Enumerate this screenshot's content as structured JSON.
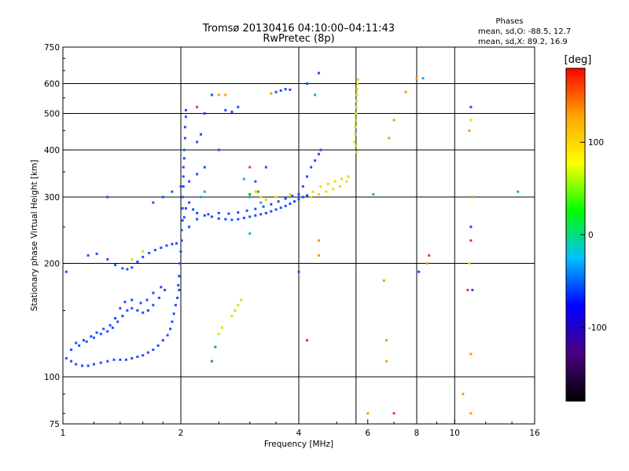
{
  "chart_data": {
    "type": "scatter",
    "title_line1": "Tromsø 20130416 04:10:00–04:11:43",
    "title_line2": "RwPretec (8p)",
    "info": {
      "header": "Phases",
      "line1": "mean, sd,O: -88.5, 12.7",
      "line2": "mean, sd,X:  89.2, 16.9"
    },
    "xlabel": "Frequency [MHz]",
    "ylabel": "Stationary phase Virtual Height [km]",
    "x_scale": "log",
    "y_scale": "log",
    "xlim": [
      1,
      16
    ],
    "ylim": [
      75,
      750
    ],
    "x_ticks": [
      {
        "value": 1,
        "label": "1"
      },
      {
        "value": 2,
        "label": "2"
      },
      {
        "value": 4,
        "label": "4"
      },
      {
        "value": 6,
        "label": "6"
      },
      {
        "value": 8,
        "label": "8"
      },
      {
        "value": 10,
        "label": "10"
      },
      {
        "value": 16,
        "label": "16"
      }
    ],
    "x_gridlines": [
      2,
      4,
      5.6,
      8,
      10
    ],
    "y_ticks": [
      {
        "value": 75,
        "label": "75"
      },
      {
        "value": 100,
        "label": "100"
      },
      {
        "value": 200,
        "label": "200"
      },
      {
        "value": 300,
        "label": "300"
      },
      {
        "value": 400,
        "label": "400"
      },
      {
        "value": 500,
        "label": "500"
      },
      {
        "value": 600,
        "label": "600"
      },
      {
        "value": 750,
        "label": "750"
      }
    ],
    "y_gridlines": [
      100,
      200,
      300,
      400,
      500,
      600
    ],
    "colorbar": {
      "label": "[deg]",
      "range": [
        -180,
        180
      ],
      "ticks": [
        {
          "value": 100,
          "label": "100"
        },
        {
          "value": 0,
          "label": "0"
        },
        {
          "value": -100,
          "label": "-100"
        }
      ],
      "stops": [
        "#000000",
        "#4b0082",
        "#0000ff",
        "#00bfff",
        "#00ff00",
        "#ffff00",
        "#ffa500",
        "#ff0000"
      ]
    },
    "grid": true,
    "series": [
      {
        "color": "#1a4fff",
        "points": [
          [
            1.02,
            112
          ],
          [
            1.05,
            110
          ],
          [
            1.08,
            108
          ],
          [
            1.12,
            107
          ],
          [
            1.16,
            107
          ],
          [
            1.2,
            108
          ],
          [
            1.25,
            109
          ],
          [
            1.3,
            110
          ],
          [
            1.35,
            111
          ],
          [
            1.4,
            111
          ],
          [
            1.45,
            111
          ],
          [
            1.5,
            112
          ],
          [
            1.55,
            113
          ],
          [
            1.6,
            114
          ],
          [
            1.65,
            116
          ],
          [
            1.7,
            118
          ],
          [
            1.75,
            121
          ],
          [
            1.8,
            125
          ],
          [
            1.85,
            129
          ],
          [
            1.88,
            134
          ],
          [
            1.9,
            140
          ],
          [
            1.92,
            147
          ],
          [
            1.94,
            155
          ],
          [
            1.96,
            162
          ],
          [
            1.98,
            170
          ],
          [
            1.05,
            118
          ],
          [
            1.1,
            121
          ],
          [
            1.15,
            124
          ],
          [
            1.2,
            127
          ],
          [
            1.25,
            130
          ],
          [
            1.3,
            132
          ],
          [
            1.34,
            135
          ],
          [
            1.38,
            140
          ],
          [
            1.42,
            145
          ],
          [
            1.46,
            150
          ],
          [
            1.5,
            152
          ],
          [
            1.55,
            150
          ],
          [
            1.6,
            148
          ],
          [
            1.65,
            150
          ],
          [
            1.7,
            155
          ],
          [
            1.76,
            162
          ],
          [
            1.82,
            170
          ],
          [
            1.08,
            123
          ],
          [
            1.13,
            125
          ],
          [
            1.18,
            128
          ],
          [
            1.22,
            131
          ],
          [
            1.27,
            134
          ],
          [
            1.32,
            137
          ],
          [
            1.36,
            143
          ],
          [
            1.4,
            152
          ],
          [
            1.44,
            158
          ],
          [
            1.5,
            160
          ],
          [
            1.58,
            157
          ],
          [
            1.64,
            160
          ],
          [
            1.7,
            167
          ],
          [
            1.78,
            173
          ],
          [
            1.16,
            210
          ],
          [
            1.22,
            212
          ],
          [
            1.3,
            205
          ],
          [
            1.36,
            198
          ],
          [
            1.42,
            194
          ],
          [
            1.46,
            193
          ],
          [
            1.5,
            195
          ],
          [
            1.55,
            202
          ],
          [
            1.6,
            208
          ],
          [
            1.66,
            213
          ],
          [
            1.72,
            217
          ],
          [
            1.78,
            220
          ],
          [
            1.84,
            223
          ],
          [
            1.9,
            225
          ],
          [
            1.95,
            226
          ],
          [
            1.97,
            175
          ],
          [
            1.98,
            185
          ],
          [
            1.99,
            200
          ],
          [
            2.0,
            215
          ],
          [
            2.01,
            230
          ],
          [
            2.01,
            245
          ],
          [
            2.02,
            260
          ],
          [
            2.02,
            280
          ],
          [
            2.02,
            300
          ],
          [
            2.03,
            320
          ],
          [
            2.03,
            340
          ],
          [
            2.03,
            360
          ],
          [
            2.04,
            380
          ],
          [
            2.04,
            400
          ],
          [
            2.05,
            430
          ],
          [
            2.05,
            460
          ],
          [
            2.06,
            490
          ],
          [
            2.06,
            510
          ],
          [
            2.04,
            265
          ],
          [
            2.06,
            280
          ],
          [
            2.1,
            290
          ],
          [
            2.15,
            278
          ],
          [
            2.2,
            272
          ],
          [
            2.3,
            268
          ],
          [
            2.4,
            266
          ],
          [
            2.5,
            263
          ],
          [
            2.6,
            262
          ],
          [
            2.7,
            261
          ],
          [
            2.8,
            262
          ],
          [
            2.9,
            264
          ],
          [
            3.0,
            266
          ],
          [
            3.1,
            268
          ],
          [
            3.2,
            270
          ],
          [
            3.3,
            272
          ],
          [
            3.4,
            275
          ],
          [
            3.5,
            278
          ],
          [
            3.6,
            281
          ],
          [
            3.7,
            284
          ],
          [
            3.8,
            288
          ],
          [
            3.9,
            292
          ],
          [
            4.0,
            296
          ],
          [
            4.1,
            300
          ],
          [
            4.2,
            303
          ],
          [
            2.1,
            250
          ],
          [
            2.2,
            262
          ],
          [
            2.35,
            270
          ],
          [
            2.5,
            272
          ],
          [
            2.65,
            271
          ],
          [
            2.8,
            273
          ],
          [
            2.95,
            276
          ],
          [
            3.1,
            279
          ],
          [
            3.25,
            283
          ],
          [
            3.4,
            287
          ],
          [
            3.55,
            292
          ],
          [
            3.7,
            297
          ],
          [
            3.85,
            302
          ],
          [
            4.0,
            305
          ],
          [
            1.7,
            290
          ],
          [
            1.8,
            300
          ],
          [
            1.9,
            310
          ],
          [
            2.0,
            320
          ],
          [
            2.1,
            330
          ],
          [
            2.2,
            345
          ],
          [
            2.3,
            360
          ],
          [
            2.5,
            400
          ],
          [
            2.2,
            420
          ],
          [
            2.25,
            440
          ],
          [
            2.3,
            500
          ],
          [
            2.4,
            560
          ],
          [
            2.6,
            510
          ],
          [
            2.7,
            505
          ],
          [
            2.8,
            520
          ],
          [
            3.5,
            570
          ],
          [
            3.6,
            575
          ],
          [
            3.7,
            580
          ],
          [
            3.8,
            578
          ],
          [
            4.1,
            320
          ],
          [
            4.2,
            340
          ],
          [
            4.3,
            360
          ],
          [
            4.4,
            375
          ],
          [
            4.5,
            390
          ],
          [
            4.55,
            400
          ],
          [
            1.02,
            190
          ],
          [
            1.3,
            300
          ],
          [
            3.1,
            330
          ],
          [
            3.3,
            360
          ],
          [
            4.0,
            190
          ],
          [
            4.5,
            640
          ],
          [
            8.1,
            190
          ],
          [
            11.0,
            520
          ],
          [
            11.0,
            250
          ],
          [
            11.1,
            170
          ],
          [
            4.2,
            600
          ]
        ]
      },
      {
        "color": "#00b4d8",
        "points": [
          [
            2.25,
            300
          ],
          [
            2.3,
            310
          ],
          [
            2.9,
            335
          ],
          [
            3.0,
            300
          ],
          [
            3.2,
            290
          ],
          [
            4.4,
            560
          ],
          [
            6.2,
            305
          ],
          [
            14.5,
            310
          ],
          [
            8.3,
            620
          ],
          [
            3.0,
            240
          ]
        ]
      },
      {
        "color": "#e0e000",
        "points": [
          [
            5.55,
            420
          ],
          [
            5.57,
            440
          ],
          [
            5.58,
            460
          ],
          [
            5.59,
            480
          ],
          [
            5.6,
            500
          ],
          [
            5.61,
            520
          ],
          [
            5.62,
            540
          ],
          [
            5.63,
            560
          ],
          [
            5.64,
            580
          ],
          [
            5.65,
            600
          ],
          [
            5.66,
            615
          ],
          [
            5.62,
            395
          ],
          [
            5.6,
            410
          ],
          [
            5.3,
            330
          ],
          [
            5.1,
            320
          ],
          [
            4.9,
            315
          ],
          [
            4.7,
            310
          ],
          [
            4.5,
            305
          ],
          [
            4.3,
            300
          ],
          [
            4.35,
            310
          ],
          [
            4.55,
            320
          ],
          [
            4.75,
            325
          ],
          [
            4.95,
            330
          ],
          [
            5.15,
            335
          ],
          [
            5.35,
            340
          ],
          [
            3.1,
            310
          ],
          [
            3.2,
            300
          ],
          [
            3.3,
            295
          ],
          [
            3.5,
            300
          ],
          [
            3.8,
            305
          ],
          [
            2.7,
            145
          ],
          [
            2.75,
            150
          ],
          [
            2.8,
            155
          ],
          [
            2.85,
            160
          ],
          [
            2.5,
            130
          ],
          [
            2.55,
            135
          ],
          [
            11.0,
            480
          ],
          [
            10.9,
            200
          ],
          [
            1.5,
            205
          ],
          [
            1.6,
            215
          ]
        ]
      },
      {
        "color": "#f59f00",
        "points": [
          [
            2.6,
            560
          ],
          [
            2.5,
            560
          ],
          [
            3.4,
            565
          ],
          [
            7.0,
            480
          ],
          [
            7.5,
            570
          ],
          [
            8.0,
            620
          ],
          [
            6.8,
            430
          ],
          [
            6.6,
            180
          ],
          [
            6.7,
            125
          ],
          [
            6.7,
            110
          ],
          [
            10.9,
            450
          ],
          [
            11.0,
            115
          ],
          [
            11.1,
            300
          ],
          [
            8.5,
            200
          ],
          [
            4.5,
            230
          ],
          [
            4.5,
            210
          ],
          [
            10.5,
            90
          ],
          [
            11.0,
            80
          ],
          [
            6.0,
            80
          ]
        ]
      },
      {
        "color": "#e53935",
        "points": [
          [
            8.6,
            210
          ],
          [
            10.8,
            170
          ],
          [
            3.0,
            360
          ],
          [
            11.0,
            230
          ],
          [
            2.2,
            520
          ],
          [
            4.2,
            125
          ],
          [
            7.0,
            80
          ]
        ]
      },
      {
        "color": "#22aa22",
        "points": [
          [
            2.4,
            110
          ],
          [
            2.45,
            120
          ],
          [
            3.0,
            305
          ],
          [
            3.15,
            310
          ]
        ]
      }
    ]
  }
}
